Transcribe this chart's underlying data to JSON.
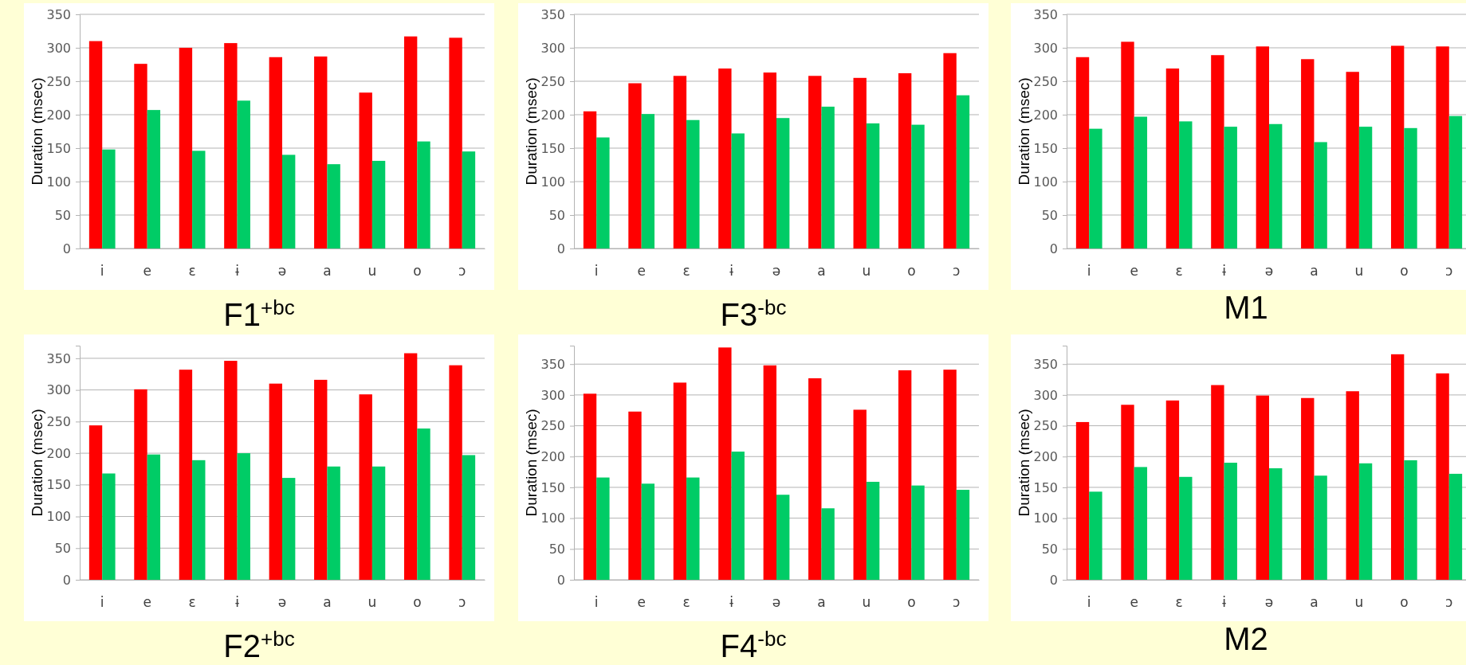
{
  "chart_data": [
    {
      "type": "bar",
      "title": "F1$^{+bc}$",
      "ylabel": "Duration (msec)",
      "categories": [
        "i",
        "e",
        "ɛ",
        "ɨ",
        "ə",
        "a",
        "u",
        "o",
        "ɔ"
      ],
      "series": [
        {
          "color": "#ff0000",
          "values": [
            310,
            276,
            300,
            307,
            286,
            287,
            233,
            317,
            315
          ]
        },
        {
          "color": "#00cc66",
          "values": [
            148,
            207,
            146,
            221,
            140,
            126,
            131,
            160,
            145
          ]
        }
      ],
      "ylim": [
        0,
        350
      ],
      "yticks": [
        0,
        50,
        100,
        150,
        200,
        250,
        300,
        350
      ],
      "grid": "y"
    },
    {
      "type": "bar",
      "title": "F3$^{-bc}$",
      "ylabel": "Duration (msec)",
      "categories": [
        "i",
        "e",
        "ɛ",
        "ɨ",
        "ə",
        "a",
        "u",
        "o",
        "ɔ"
      ],
      "series": [
        {
          "color": "#ff0000",
          "values": [
            205,
            247,
            258,
            269,
            263,
            258,
            255,
            262,
            292
          ]
        },
        {
          "color": "#00cc66",
          "values": [
            166,
            201,
            192,
            172,
            195,
            212,
            187,
            185,
            229
          ]
        }
      ],
      "ylim": [
        0,
        350
      ],
      "yticks": [
        0,
        50,
        100,
        150,
        200,
        250,
        300,
        350
      ],
      "grid": "y"
    },
    {
      "type": "bar",
      "title": "M1",
      "ylabel": "Duration (msec)",
      "categories": [
        "i",
        "e",
        "ɛ",
        "ɨ",
        "ə",
        "a",
        "u",
        "o",
        "ɔ"
      ],
      "series": [
        {
          "color": "#ff0000",
          "values": [
            286,
            309,
            269,
            289,
            302,
            283,
            264,
            303,
            302
          ]
        },
        {
          "color": "#00cc66",
          "values": [
            179,
            197,
            190,
            182,
            186,
            159,
            182,
            180,
            198
          ]
        }
      ],
      "ylim": [
        0,
        350
      ],
      "yticks": [
        0,
        50,
        100,
        150,
        200,
        250,
        300,
        350
      ],
      "grid": "y"
    },
    {
      "type": "bar",
      "title": "F2$^{+bc}$",
      "ylabel": "Duration (msec)",
      "categories": [
        "i",
        "e",
        "ɛ",
        "ɨ",
        "ə",
        "a",
        "u",
        "o",
        "ɔ"
      ],
      "series": [
        {
          "color": "#ff0000",
          "values": [
            244,
            301,
            332,
            346,
            310,
            316,
            293,
            358,
            339
          ]
        },
        {
          "color": "#00cc66",
          "values": [
            168,
            198,
            189,
            200,
            161,
            179,
            179,
            239,
            197
          ]
        }
      ],
      "ylim": [
        0,
        370
      ],
      "yticks": [
        0,
        50,
        100,
        150,
        200,
        250,
        300,
        350
      ],
      "grid": "y"
    },
    {
      "type": "bar",
      "title": "F4$^{-bc}$",
      "ylabel": "Duration (msec)",
      "categories": [
        "i",
        "e",
        "ɛ",
        "ɨ",
        "ə",
        "a",
        "u",
        "o",
        "ɔ"
      ],
      "series": [
        {
          "color": "#ff0000",
          "values": [
            302,
            273,
            320,
            377,
            348,
            327,
            276,
            340,
            341
          ]
        },
        {
          "color": "#00cc66",
          "values": [
            166,
            156,
            166,
            208,
            138,
            116,
            159,
            153,
            146
          ]
        }
      ],
      "ylim": [
        0,
        380
      ],
      "yticks": [
        0,
        50,
        100,
        150,
        200,
        250,
        300,
        350
      ],
      "grid": "y"
    },
    {
      "type": "bar",
      "title": "M2",
      "ylabel": "Duration (msec)",
      "categories": [
        "i",
        "e",
        "ɛ",
        "ɨ",
        "ə",
        "a",
        "u",
        "o",
        "ɔ"
      ],
      "series": [
        {
          "color": "#ff0000",
          "values": [
            256,
            284,
            291,
            316,
            299,
            295,
            306,
            366,
            335
          ]
        },
        {
          "color": "#00cc66",
          "values": [
            143,
            183,
            167,
            190,
            181,
            169,
            189,
            194,
            172
          ]
        }
      ],
      "ylim": [
        0,
        380
      ],
      "yticks": [
        0,
        50,
        100,
        150,
        200,
        250,
        300,
        350
      ],
      "grid": "y"
    }
  ]
}
